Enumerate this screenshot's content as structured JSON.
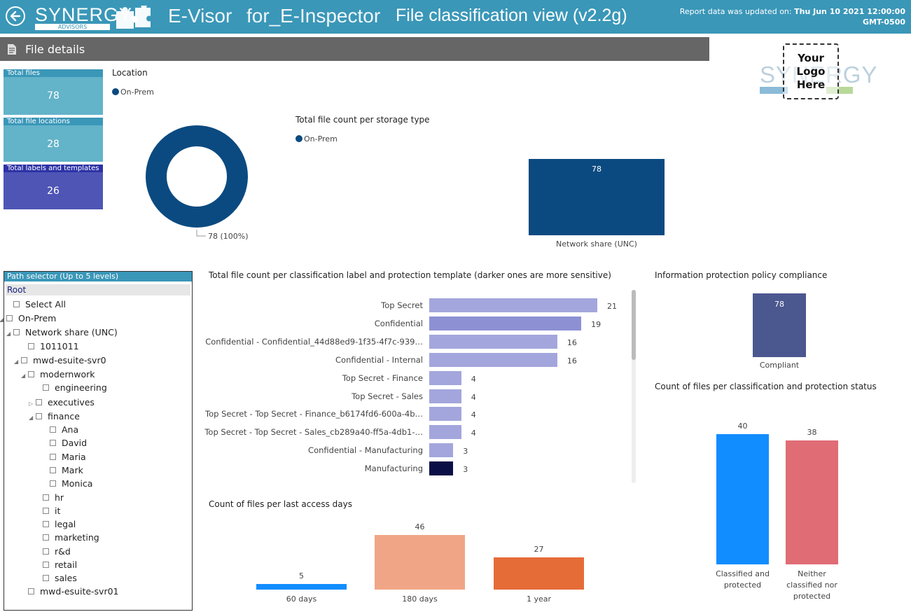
{
  "header": {
    "brand": "SYNERGY",
    "brand_sub": "ADVISORS",
    "app_name": "E-Visor",
    "for_label": "for_",
    "product": "E-Inspector",
    "view_title": "File classification view (v2.2g)",
    "updated_prefix": "Report data was updated on:",
    "updated_value": "Thu Jun 10 2021 12:00:00 GMT-0500"
  },
  "section": {
    "title": "File details"
  },
  "logo": {
    "line1": "Your",
    "line2": "Logo",
    "line3": "Here",
    "watermark": "SYNERGY"
  },
  "kpis": [
    {
      "label": "Total files",
      "value": "78"
    },
    {
      "label": "Total file locations",
      "value": "28"
    },
    {
      "label": "Total labels and templates",
      "value": "26"
    }
  ],
  "location": {
    "title": "Location",
    "legend": "On-Prem",
    "slice_label": "78 (100%)"
  },
  "storage": {
    "title": "Total file count per storage type",
    "legend": "On-Prem",
    "category": "Network share (UNC)",
    "value": "78"
  },
  "tree": {
    "header": "Path selector (Up to 5 levels)",
    "root": "Root",
    "nodes": [
      {
        "label": "Select All"
      },
      {
        "label": "On-Prem"
      },
      {
        "label": "Network share (UNC)"
      },
      {
        "label": "1011011"
      },
      {
        "label": "mwd-esuite-svr0"
      },
      {
        "label": "modernwork"
      },
      {
        "label": "engineering"
      },
      {
        "label": "executives"
      },
      {
        "label": "finance"
      },
      {
        "label": "Ana"
      },
      {
        "label": "David"
      },
      {
        "label": "Maria"
      },
      {
        "label": "Mark"
      },
      {
        "label": "Monica"
      },
      {
        "label": "hr"
      },
      {
        "label": "it"
      },
      {
        "label": "legal"
      },
      {
        "label": "marketing"
      },
      {
        "label": "r&d"
      },
      {
        "label": "retail"
      },
      {
        "label": "sales"
      },
      {
        "label": "mwd-esuite-svr01"
      }
    ]
  },
  "labels_chart": {
    "title": "Total file count per classification label and protection template (darker ones are more sensitive)"
  },
  "compliance": {
    "title": "Information protection policy compliance",
    "category": "Compliant",
    "value": "78"
  },
  "status_chart": {
    "title": "Count of files per classification and protection status"
  },
  "access_chart": {
    "title": "Count of files per last access days"
  },
  "colors": {
    "header": "#3a97b8",
    "kpi1": "#63b3c9",
    "kpi3": "#4f55b5",
    "navy": "#0b4a80",
    "blue": "#118dff",
    "red": "#e06c75",
    "salmon": "#f0a686",
    "orange": "#e66c37"
  },
  "chart_data": [
    {
      "type": "pie",
      "categories": [
        "On-Prem"
      ],
      "values": [
        78
      ],
      "title": "Location"
    },
    {
      "type": "bar",
      "categories": [
        "Network share (UNC)"
      ],
      "values": [
        78
      ],
      "title": "Total file count per storage type",
      "ylim": [
        0,
        78
      ]
    },
    {
      "type": "bar",
      "orientation": "horizontal",
      "title": "Total file count per classification label and protection template (darker ones are more sensitive)",
      "categories": [
        "Top Secret",
        "Confidential",
        "Confidential - Confidential_44d88ed9-1f35-4f7c-939…",
        "Confidential - Internal",
        "Top Secret - Finance",
        "Top Secret - Sales",
        "Top Secret - Top Secret - Finance_b6174fd6-600a-4b…",
        "Top Secret - Top Secret - Sales_cb289a40-ff5a-4db1-…",
        "Confidential - Manufacturing",
        "Manufacturing"
      ],
      "values": [
        21,
        19,
        16,
        16,
        4,
        4,
        4,
        4,
        3,
        3
      ],
      "bar_colors": [
        "#a3a6dc",
        "#8d91d4",
        "#a3a6dc",
        "#a3a6dc",
        "#a3a6dc",
        "#a3a6dc",
        "#a3a6dc",
        "#a3a6dc",
        "#a3a6dc",
        "#0a0f45"
      ],
      "xlim": [
        0,
        21
      ]
    },
    {
      "type": "bar",
      "title": "Information protection policy compliance",
      "categories": [
        "Compliant"
      ],
      "values": [
        78
      ],
      "ylim": [
        0,
        78
      ]
    },
    {
      "type": "bar",
      "title": "Count of files per classification and protection status",
      "categories": [
        "Classified and protected",
        "Neither classified nor protected"
      ],
      "values": [
        40,
        38
      ],
      "bar_colors": [
        "#118dff",
        "#e06c75"
      ],
      "ylim": [
        0,
        40
      ]
    },
    {
      "type": "bar",
      "title": "Count of files per last access days",
      "categories": [
        "60 days",
        "180 days",
        "1 year"
      ],
      "values": [
        5,
        46,
        27
      ],
      "bar_colors": [
        "#118dff",
        "#f0a686",
        "#e66c37"
      ],
      "ylim": [
        0,
        46
      ]
    }
  ]
}
